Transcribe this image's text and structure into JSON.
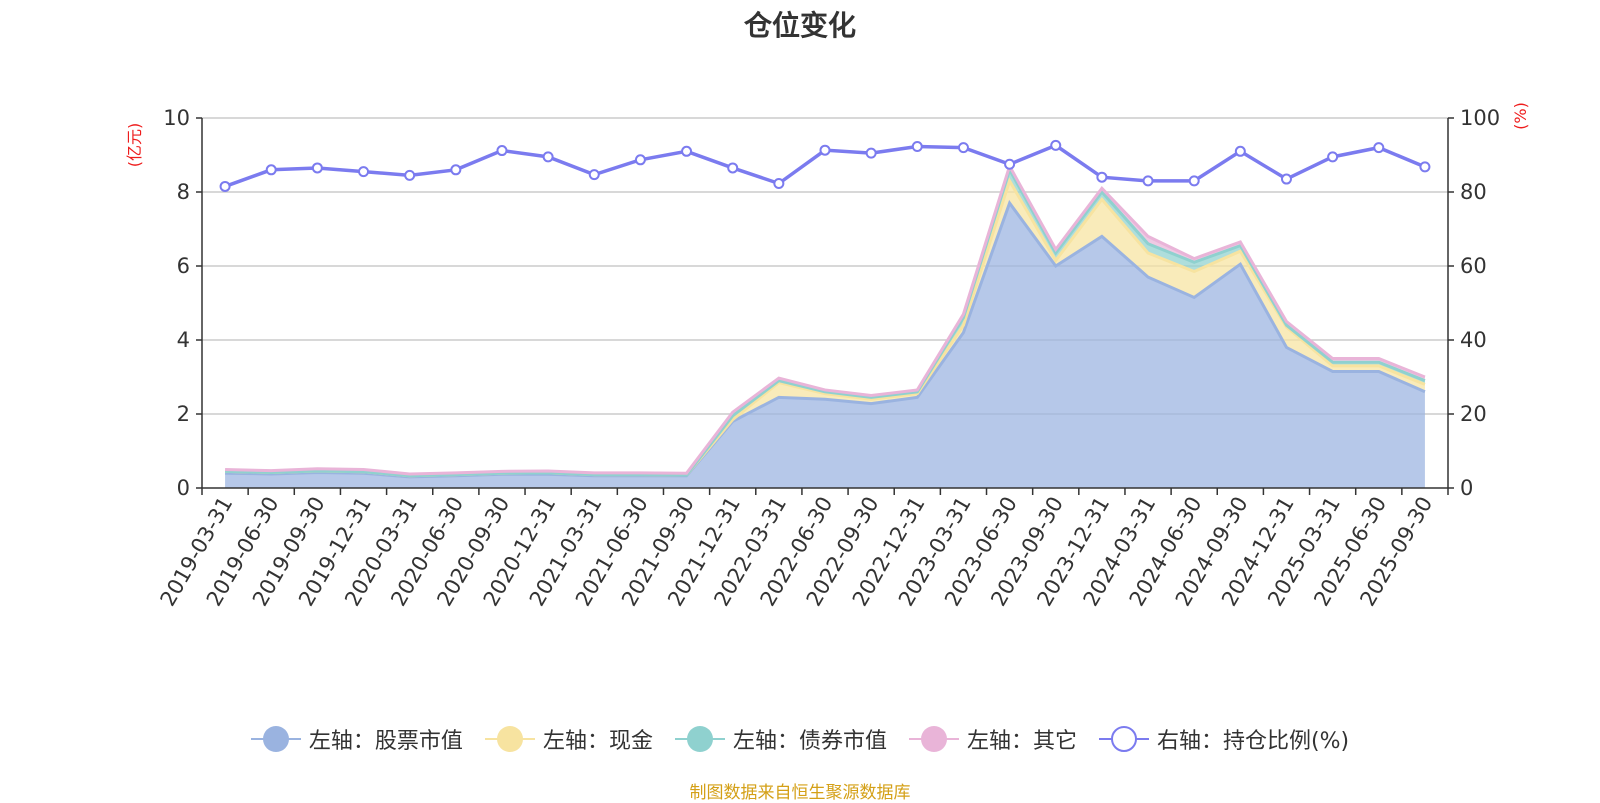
{
  "chart_title": "仓位变化",
  "source_note": "制图数据来自恒生聚源数据库",
  "chart_data": {
    "type": "area",
    "title": "仓位变化",
    "x": [
      "2019-03-31",
      "2019-06-30",
      "2019-09-30",
      "2019-12-31",
      "2020-03-31",
      "2020-06-30",
      "2020-09-30",
      "2020-12-31",
      "2021-03-31",
      "2021-06-30",
      "2021-09-30",
      "2021-12-31",
      "2022-03-31",
      "2022-06-30",
      "2022-09-30",
      "2022-12-31",
      "2023-03-31",
      "2023-06-30",
      "2023-09-30",
      "2023-12-31",
      "2024-03-31",
      "2024-06-30",
      "2024-09-30",
      "2024-12-31",
      "2025-03-31",
      "2025-06-30",
      "2025-09-30"
    ],
    "left_axis": {
      "unit": "(亿元)",
      "ylim": [
        0,
        10
      ],
      "ticks": [
        0,
        2,
        4,
        6,
        8,
        10
      ]
    },
    "right_axis": {
      "unit": "(%)",
      "ylim": [
        0,
        100
      ],
      "ticks": [
        0,
        20,
        40,
        60,
        80,
        100
      ]
    },
    "stacked": true,
    "grid": true,
    "legend_position": "bottom",
    "series": [
      {
        "name": "左轴：股票市值",
        "axis": "left",
        "type": "area",
        "color": "#9ab3e0",
        "values": [
          0.4,
          0.38,
          0.42,
          0.4,
          0.3,
          0.33,
          0.37,
          0.37,
          0.33,
          0.33,
          0.33,
          1.8,
          2.45,
          2.4,
          2.28,
          2.45,
          4.2,
          7.7,
          6.0,
          6.8,
          5.7,
          5.15,
          6.05,
          3.8,
          3.15,
          3.15,
          2.6
        ]
      },
      {
        "name": "左轴：现金",
        "axis": "left",
        "type": "area",
        "color": "#f7e3a0",
        "values": [
          0.05,
          0.04,
          0.04,
          0.04,
          0.03,
          0.03,
          0.03,
          0.04,
          0.03,
          0.03,
          0.02,
          0.05,
          0.4,
          0.15,
          0.12,
          0.1,
          0.2,
          0.6,
          0.15,
          1.0,
          0.65,
          0.7,
          0.35,
          0.55,
          0.15,
          0.15,
          0.2
        ]
      },
      {
        "name": "左轴：债券市值",
        "axis": "left",
        "type": "area",
        "color": "#8fd1cf",
        "values": [
          0.0,
          0.0,
          0.0,
          0.0,
          0.0,
          0.0,
          0.0,
          0.0,
          0.0,
          0.0,
          0.0,
          0.1,
          0.05,
          0.05,
          0.05,
          0.05,
          0.2,
          0.3,
          0.2,
          0.2,
          0.25,
          0.25,
          0.15,
          0.05,
          0.1,
          0.1,
          0.1
        ]
      },
      {
        "name": "左轴：其它",
        "axis": "left",
        "type": "area",
        "color": "#e9b4d8",
        "values": [
          0.05,
          0.05,
          0.06,
          0.06,
          0.05,
          0.05,
          0.05,
          0.05,
          0.05,
          0.05,
          0.05,
          0.1,
          0.07,
          0.05,
          0.05,
          0.05,
          0.1,
          0.1,
          0.1,
          0.1,
          0.2,
          0.1,
          0.1,
          0.1,
          0.1,
          0.1,
          0.1
        ]
      },
      {
        "name": "右轴：持仓比例(%)",
        "axis": "right",
        "type": "line",
        "color": "#7b7bef",
        "values": [
          81.5,
          86.0,
          86.5,
          85.5,
          84.5,
          86.0,
          91.2,
          89.5,
          84.7,
          88.7,
          91.0,
          86.5,
          82.3,
          91.3,
          90.5,
          92.3,
          92.0,
          87.5,
          92.6,
          84.0,
          83.0,
          83.0,
          91.0,
          83.5,
          89.5,
          92.0,
          86.8
        ]
      }
    ]
  }
}
